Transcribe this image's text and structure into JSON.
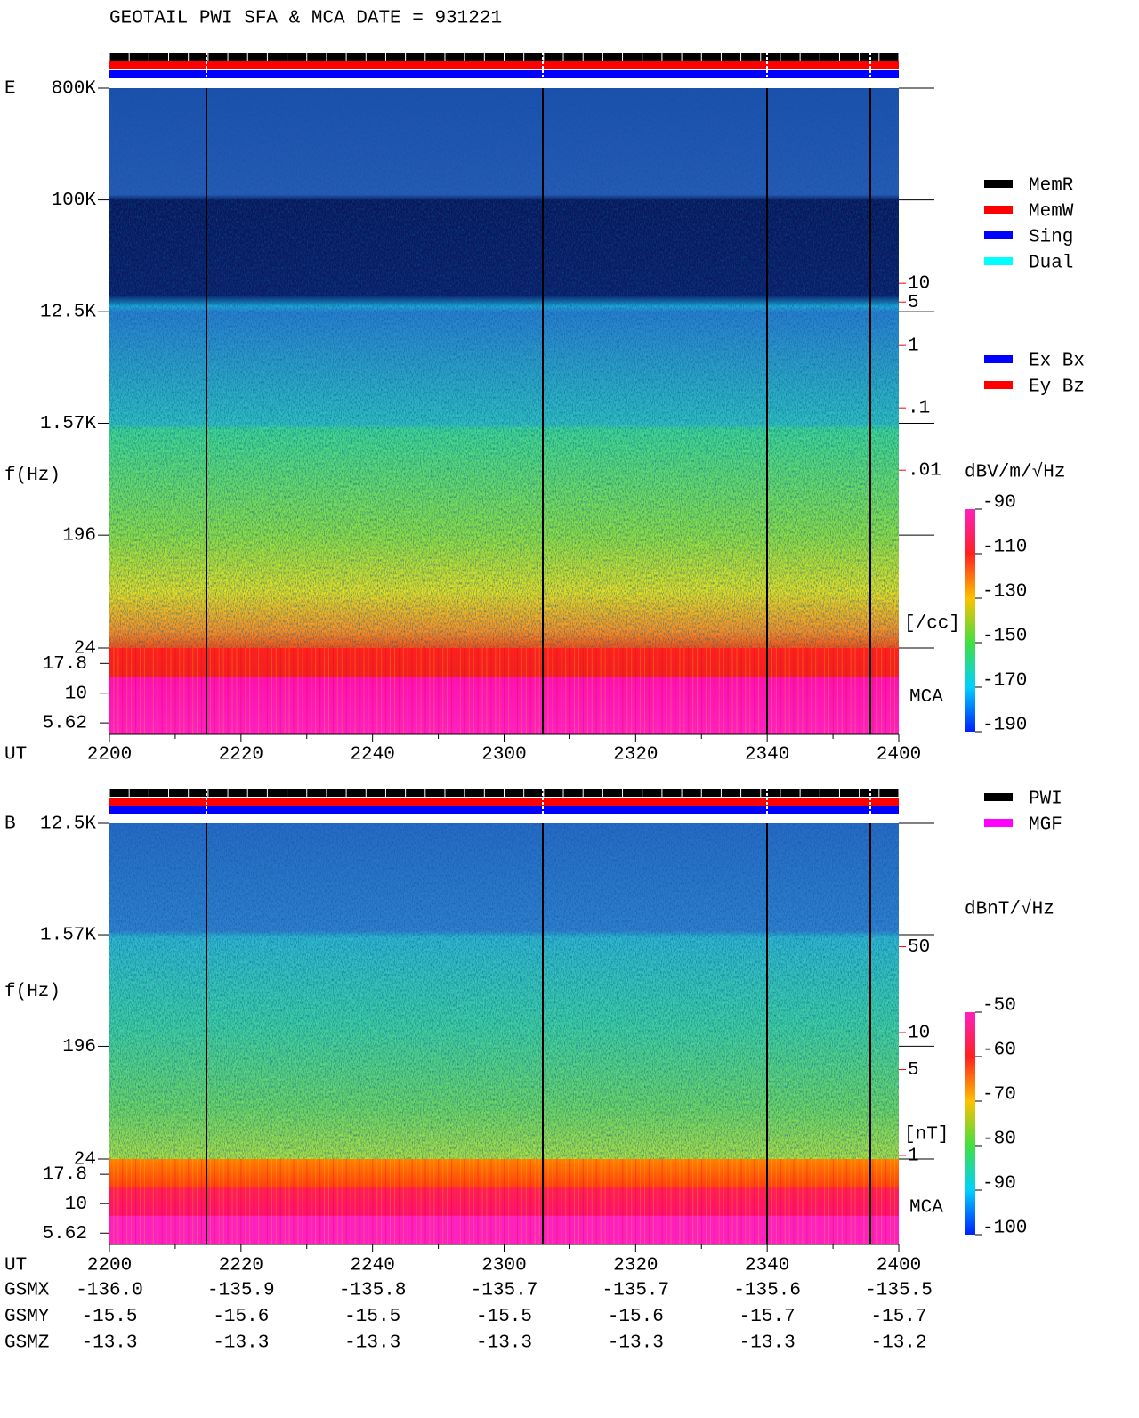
{
  "title": "GEOTAIL  PWI SFA & MCA   DATE = 931221",
  "chart_data": [
    {
      "type": "spectrogram",
      "panel_label": "E",
      "y_label": "f(Hz)",
      "x_label": "UT",
      "log_y": true,
      "ylim": [
        24,
        800000
      ],
      "yticks": [
        {
          "value": 800000,
          "label": "800K"
        },
        {
          "value": 100000,
          "label": "100K"
        },
        {
          "value": 12500,
          "label": "12.5K"
        },
        {
          "value": 1570,
          "label": "1.57K"
        },
        196,
        24
      ],
      "mca_label": "MCA",
      "mca_ylim": [
        4.5,
        24
      ],
      "mca_ticks": [
        17.8,
        10,
        5.62
      ],
      "x_tick_labels": [
        "2200",
        "2220",
        "2240",
        "2300",
        "2320",
        "2340",
        "2400"
      ],
      "y2_label": "[/cc]",
      "y2_color": "#ff0000",
      "y2lim": [
        1.4e-05,
        13500
      ],
      "y2ticks": [
        10,
        5,
        1,
        {
          "value": 0.1,
          "label": ".1"
        },
        {
          "value": 0.01,
          "label": ".01"
        }
      ],
      "colorbar_label": "dBV/m/√Hz",
      "colorbar_lim": [
        -190,
        -90
      ],
      "colorbar_ticks": [
        -90,
        -110,
        -130,
        -150,
        -170,
        -190
      ],
      "legend": [
        {
          "name": "MemR",
          "color": "#000000"
        },
        {
          "name": "MemW",
          "color": "#ff0000"
        },
        {
          "name": "Sing",
          "color": "#0000ff"
        },
        {
          "name": "Dual",
          "color": "#00ffff"
        }
      ],
      "legend2": [
        {
          "name": "Ex Bx",
          "color": "#0000ff"
        },
        {
          "name": "Ey Bz",
          "color": "#ff0000"
        }
      ]
    },
    {
      "type": "spectrogram",
      "panel_label": "B",
      "y_label": "f(Hz)",
      "x_label": "UT",
      "log_y": true,
      "ylim": [
        24,
        12500
      ],
      "yticks": [
        {
          "value": 12500,
          "label": "12.5K"
        },
        {
          "value": 1570,
          "label": "1.57K"
        },
        196,
        24
      ],
      "mca_label": "MCA",
      "mca_ylim": [
        4.5,
        24
      ],
      "mca_ticks": [
        17.8,
        10,
        5.62
      ],
      "x_tick_labels": [
        "2200",
        "2220",
        "2240",
        "2300",
        "2320",
        "2340",
        "2400"
      ],
      "y2_label": "[nT]",
      "y2_color": "#ff0000",
      "y2lim": [
        0.935,
        505
      ],
      "y2ticks": [
        50,
        10,
        5,
        1
      ],
      "colorbar_label": "dBnT/√Hz",
      "colorbar_lim": [
        -100,
        -50
      ],
      "colorbar_ticks": [
        -50,
        -60,
        -70,
        -80,
        -90,
        -100
      ],
      "legend": [
        {
          "name": "PWI",
          "color": "#000000"
        },
        {
          "name": "MGF",
          "color": "#ff00ff"
        }
      ]
    }
  ],
  "orbit": {
    "rows": [
      {
        "name": "GSMX",
        "values": [
          "-136.0",
          "-135.9",
          "-135.8",
          "-135.7",
          "-135.7",
          "-135.6",
          "-135.5"
        ]
      },
      {
        "name": "GSMY",
        "values": [
          "-15.5",
          "-15.6",
          "-15.5",
          "-15.5",
          "-15.6",
          "-15.7",
          "-15.7"
        ]
      },
      {
        "name": "GSMZ",
        "values": [
          "-13.3",
          "-13.3",
          "-13.3",
          "-13.3",
          "-13.3",
          "-13.3",
          "-13.2"
        ]
      }
    ]
  }
}
